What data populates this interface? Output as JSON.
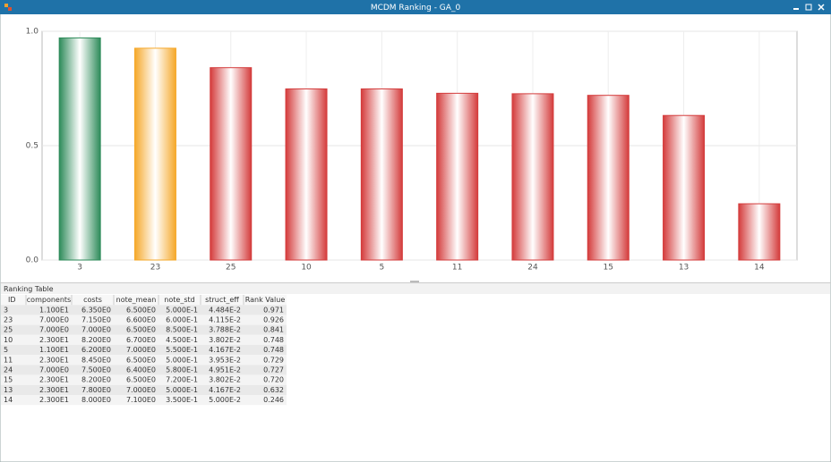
{
  "window": {
    "title": "MCDM Ranking - GA_0"
  },
  "chart_data": {
    "type": "bar",
    "categories": [
      "3",
      "23",
      "25",
      "10",
      "5",
      "11",
      "24",
      "15",
      "13",
      "14"
    ],
    "values": [
      0.971,
      0.926,
      0.841,
      0.748,
      0.748,
      0.729,
      0.727,
      0.72,
      0.632,
      0.246
    ],
    "colors": [
      "#2e8b5a",
      "#f5a82a",
      "#d43c3c",
      "#d43c3c",
      "#d43c3c",
      "#d43c3c",
      "#d43c3c",
      "#d43c3c",
      "#d43c3c",
      "#d43c3c"
    ],
    "ylim": [
      0,
      1.0
    ],
    "yticks": [
      {
        "value": 0,
        "label": "0.0"
      },
      {
        "value": 0.5,
        "label": "0.5"
      },
      {
        "value": 1.0,
        "label": "1.0"
      }
    ],
    "grid": true
  },
  "table": {
    "title": "Ranking Table",
    "header": [
      "ID",
      "components",
      "costs",
      "note_mean",
      "note_std",
      "struct_eff",
      "Rank Value"
    ],
    "rows": [
      [
        "3",
        "1.100E1",
        "6.350E0",
        "6.500E0",
        "5.000E-1",
        "4.484E-2",
        "0.971"
      ],
      [
        "23",
        "7.000E0",
        "7.150E0",
        "6.600E0",
        "6.000E-1",
        "4.115E-2",
        "0.926"
      ],
      [
        "25",
        "7.000E0",
        "7.000E0",
        "6.500E0",
        "8.500E-1",
        "3.788E-2",
        "0.841"
      ],
      [
        "10",
        "2.300E1",
        "8.200E0",
        "6.700E0",
        "4.500E-1",
        "3.802E-2",
        "0.748"
      ],
      [
        "5",
        "1.100E1",
        "6.200E0",
        "7.000E0",
        "5.500E-1",
        "4.167E-2",
        "0.748"
      ],
      [
        "11",
        "2.300E1",
        "8.450E0",
        "6.500E0",
        "5.000E-1",
        "3.953E-2",
        "0.729"
      ],
      [
        "24",
        "7.000E0",
        "7.500E0",
        "6.400E0",
        "5.800E-1",
        "4.951E-2",
        "0.727"
      ],
      [
        "15",
        "2.300E1",
        "8.200E0",
        "6.500E0",
        "7.200E-1",
        "3.802E-2",
        "0.720"
      ],
      [
        "13",
        "2.300E1",
        "7.800E0",
        "7.000E0",
        "5.000E-1",
        "4.167E-2",
        "0.632"
      ],
      [
        "14",
        "2.300E1",
        "8.000E0",
        "7.100E0",
        "3.500E-1",
        "5.000E-2",
        "0.246"
      ]
    ]
  }
}
